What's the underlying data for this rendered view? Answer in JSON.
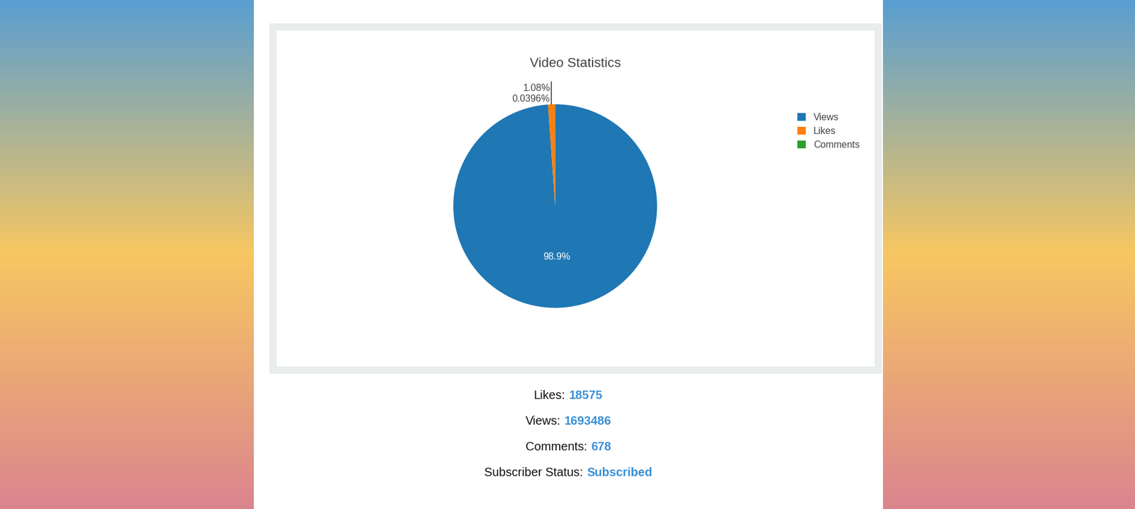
{
  "chart_data": {
    "type": "pie",
    "title": "Video Statistics",
    "categories": [
      "Views",
      "Likes",
      "Comments"
    ],
    "values": [
      98.9,
      1.08,
      0.0396
    ],
    "value_labels": [
      "98.9%",
      "1.08%",
      "0.0396%"
    ],
    "colors": [
      "#1f77b4",
      "#ff7f0e",
      "#2ca02c"
    ],
    "legend": "upper right",
    "data_labels": true
  },
  "stats": [
    {
      "label": "Likes:",
      "value": 18575
    },
    {
      "label": "Views:",
      "value": 1693486
    },
    {
      "label": "Comments:",
      "value": 678
    },
    {
      "label": "Subscriber Status:",
      "value": "Subscribed"
    }
  ]
}
